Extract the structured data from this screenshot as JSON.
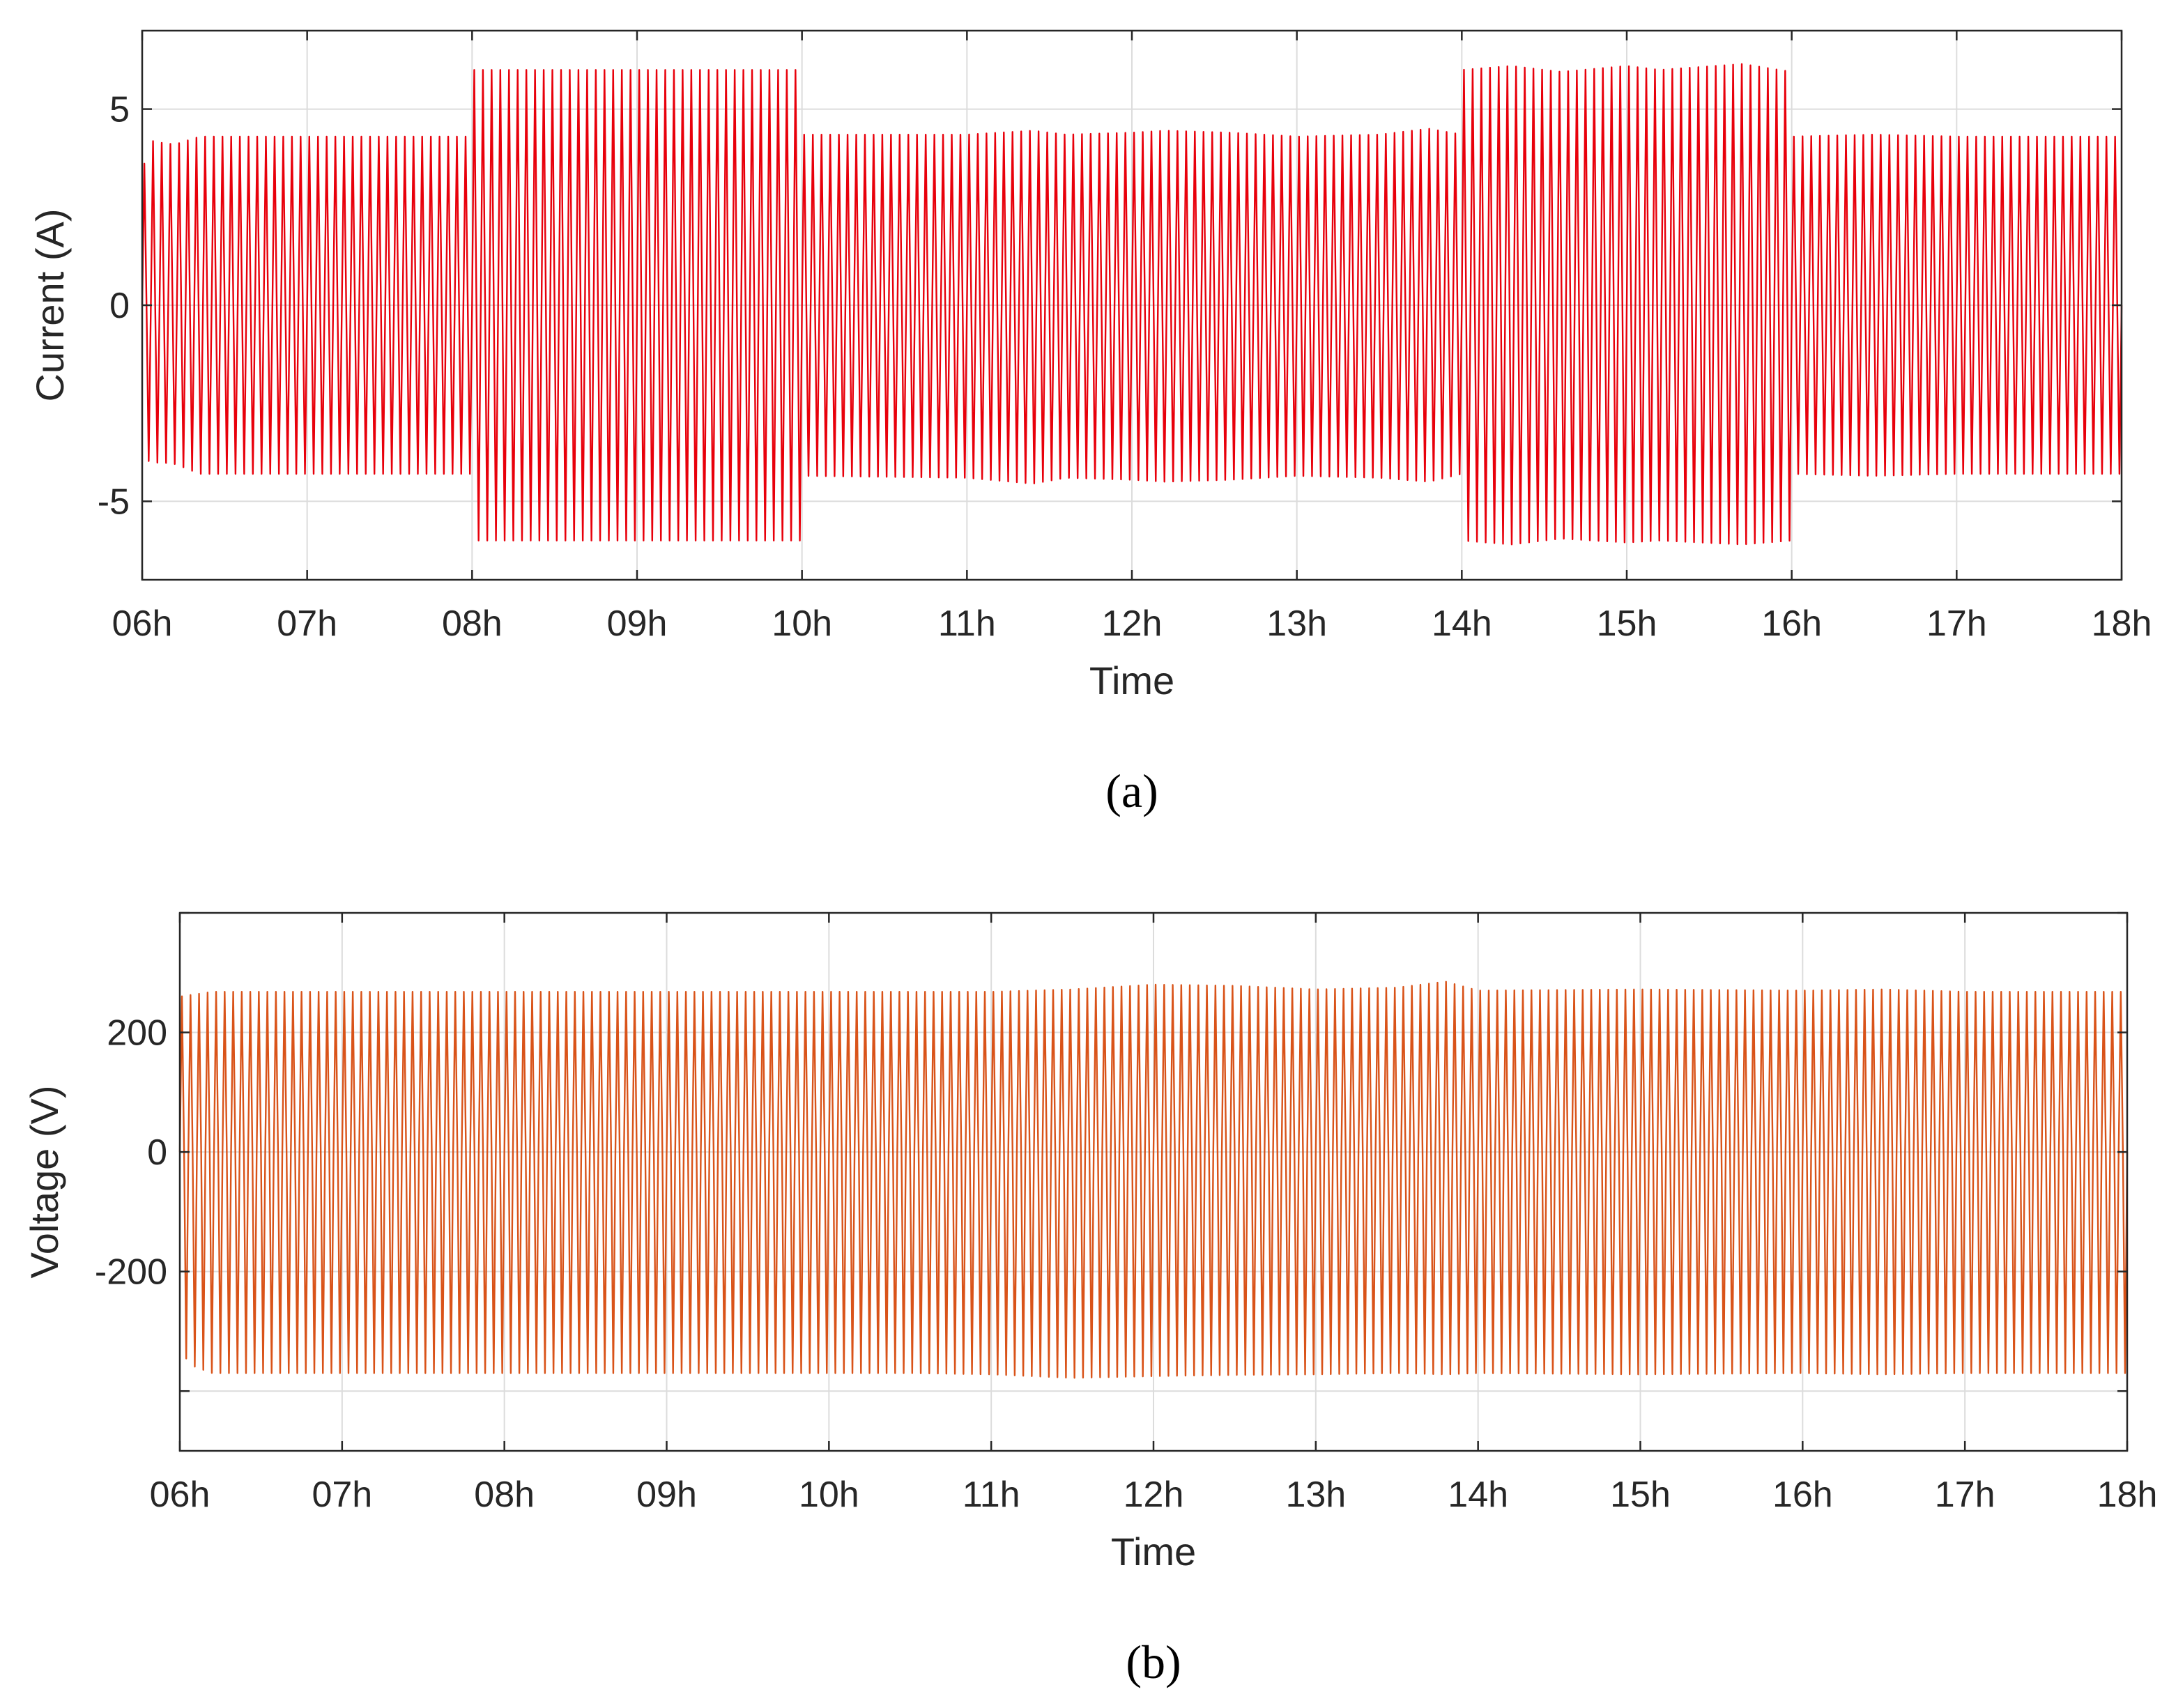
{
  "chart_data": [
    {
      "type": "line",
      "panel_label": "(a)",
      "xlabel": "Time",
      "ylabel": "Current (A)",
      "x_tick_labels": [
        "06h",
        "07h",
        "08h",
        "09h",
        "10h",
        "11h",
        "12h",
        "13h",
        "14h",
        "15h",
        "16h",
        "17h",
        "18h"
      ],
      "x_ticks": [
        6,
        7,
        8,
        9,
        10,
        11,
        12,
        13,
        14,
        15,
        16,
        17,
        18
      ],
      "xlim": [
        6,
        18
      ],
      "y_ticks": [
        -5,
        0,
        5
      ],
      "y_tick_labels": [
        "-5",
        "0",
        "5"
      ],
      "ylim": [
        -7,
        7
      ],
      "grid": true,
      "color": "#e8000b",
      "signal": "alternating (sinusoidal) current, envelope amplitude varies by hour",
      "cycles_per_hour": 19,
      "envelope": {
        "x": [
          6.0,
          6.05,
          6.1,
          6.2,
          6.35,
          8.0,
          8.0,
          10.0,
          10.0,
          11.0,
          11.4,
          11.6,
          12.0,
          12.2,
          12.6,
          13.0,
          13.5,
          13.8,
          14.0,
          14.0,
          14.3,
          14.6,
          15.0,
          15.2,
          15.7,
          16.0,
          16.0,
          16.5,
          17.0,
          18.0
        ],
        "upper": [
          3.4,
          4.2,
          4.15,
          4.1,
          4.3,
          4.3,
          6.0,
          6.0,
          4.35,
          4.35,
          4.45,
          4.35,
          4.4,
          4.45,
          4.4,
          4.3,
          4.35,
          4.5,
          4.35,
          6.0,
          6.1,
          5.95,
          6.1,
          6.0,
          6.15,
          5.95,
          4.3,
          4.35,
          4.3,
          4.3
        ],
        "lower": [
          -3.5,
          -4.1,
          -4.0,
          -4.05,
          -4.3,
          -4.3,
          -6.0,
          -6.0,
          -4.35,
          -4.4,
          -4.55,
          -4.4,
          -4.45,
          -4.5,
          -4.45,
          -4.35,
          -4.4,
          -4.5,
          -4.3,
          -6.0,
          -6.1,
          -5.95,
          -6.05,
          -6.0,
          -6.1,
          -6.0,
          -4.3,
          -4.35,
          -4.3,
          -4.3
        ]
      }
    },
    {
      "type": "line",
      "panel_label": "(b)",
      "xlabel": "Time",
      "ylabel": "Voltage (V)",
      "x_tick_labels": [
        "06h",
        "07h",
        "08h",
        "09h",
        "10h",
        "11h",
        "12h",
        "13h",
        "14h",
        "15h",
        "16h",
        "17h",
        "18h"
      ],
      "x_ticks": [
        6,
        7,
        8,
        9,
        10,
        11,
        12,
        13,
        14,
        15,
        16,
        17,
        18
      ],
      "xlim": [
        6,
        18
      ],
      "y_ticks": [
        -400,
        -200,
        0,
        200,
        400
      ],
      "y_tick_labels": [
        "",
        "-200",
        "0",
        "200",
        ""
      ],
      "ylim": [
        -500,
        400
      ],
      "grid": true,
      "color": "#d95319",
      "signal": "alternating (sinusoidal) voltage, near-constant envelope",
      "cycles_per_hour": 19,
      "envelope": {
        "x": [
          6.0,
          6.05,
          6.2,
          10.0,
          10.5,
          11.0,
          11.5,
          12.0,
          12.5,
          13.0,
          13.5,
          13.8,
          14.0,
          15.0,
          16.0,
          16.5,
          17.0,
          18.0
        ],
        "upper": [
          260,
          262,
          268,
          268,
          268,
          268,
          272,
          280,
          278,
          272,
          275,
          285,
          270,
          272,
          270,
          272,
          268,
          268
        ],
        "lower": [
          -310,
          -355,
          -370,
          -370,
          -370,
          -372,
          -378,
          -375,
          -373,
          -372,
          -370,
          -372,
          -370,
          -372,
          -370,
          -372,
          -370,
          -370
        ]
      }
    }
  ]
}
